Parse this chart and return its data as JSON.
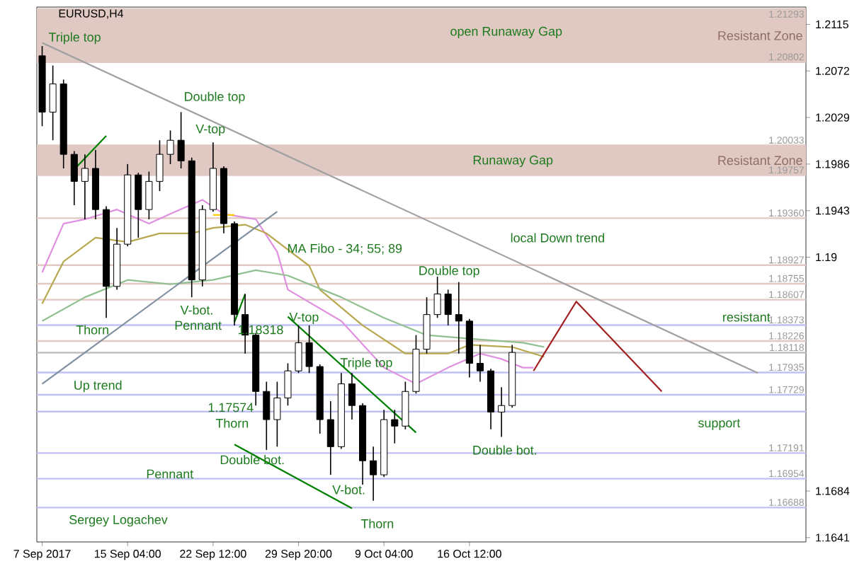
{
  "chart_data": {
    "type": "candlestick",
    "title": "EURUSD,H4",
    "ylim": [
      1.1637,
      1.2131
    ],
    "yticks": [
      1.2115,
      1.2072,
      1.2029,
      1.1986,
      1.1943,
      1.19,
      1.1684,
      1.1641
    ],
    "categories": [
      "7 Sep 2017",
      null,
      null,
      null,
      null,
      null,
      null,
      null,
      "15 Sep 04:00",
      null,
      null,
      null,
      null,
      null,
      null,
      null,
      "22 Sep 12:00",
      null,
      null,
      null,
      null,
      null,
      null,
      null,
      "29 Sep 20:00",
      null,
      null,
      null,
      null,
      null,
      null,
      null,
      "9 Oct 04:00",
      null,
      null,
      null,
      null,
      null,
      null,
      null,
      "16 Oct 12:00",
      null,
      null,
      null,
      null,
      null,
      null,
      null,
      null,
      null,
      null,
      null,
      null,
      null,
      null,
      null,
      null,
      null,
      null,
      null,
      null,
      null,
      null,
      null,
      null,
      null,
      null,
      null,
      null,
      null,
      null,
      null
    ],
    "ohlc": [
      [
        1.2086,
        1.2095,
        1.2021,
        1.2034
      ],
      [
        1.2034,
        1.2077,
        1.2008,
        1.206
      ],
      [
        1.206,
        1.2064,
        1.1982,
        1.1995
      ],
      [
        1.1995,
        1.1998,
        1.1948,
        1.197
      ],
      [
        1.197,
        1.1995,
        1.1935,
        1.1982
      ],
      [
        1.1982,
        1.1999,
        1.1935,
        1.1944
      ],
      [
        1.1944,
        1.1947,
        1.1844,
        1.1873
      ],
      [
        1.1873,
        1.1927,
        1.187,
        1.1912
      ],
      [
        1.1912,
        1.1986,
        1.191,
        1.1976
      ],
      [
        1.1976,
        1.1978,
        1.1918,
        1.1944
      ],
      [
        1.1944,
        1.1979,
        1.1935,
        1.197
      ],
      [
        1.197,
        1.2008,
        1.1961,
        1.1995
      ],
      [
        1.1995,
        1.2017,
        1.1986,
        1.2008
      ],
      [
        1.2008,
        1.2034,
        1.1982,
        1.1989
      ],
      [
        1.1989,
        1.1992,
        1.1863,
        1.1879
      ],
      [
        1.1879,
        1.1948,
        1.1873,
        1.1944
      ],
      [
        1.1944,
        1.2006,
        1.1942,
        1.1982
      ],
      [
        1.1982,
        1.1984,
        1.1922,
        1.1931
      ],
      [
        1.1931,
        1.1933,
        1.1837,
        1.1847
      ],
      [
        1.1847,
        1.1866,
        1.1811,
        1.1828
      ],
      [
        1.1828,
        1.183,
        1.1763,
        1.1776
      ],
      [
        1.1776,
        1.1785,
        1.1722,
        1.175
      ],
      [
        1.175,
        1.1785,
        1.1725,
        1.177
      ],
      [
        1.177,
        1.1802,
        1.1763,
        1.1795
      ],
      [
        1.1795,
        1.1837,
        1.1793,
        1.1821
      ],
      [
        1.1821,
        1.1837,
        1.1793,
        1.1799
      ],
      [
        1.1799,
        1.1801,
        1.1737,
        1.175
      ],
      [
        1.175,
        1.1767,
        1.1699,
        1.1725
      ],
      [
        1.1725,
        1.1793,
        1.1723,
        1.1783
      ],
      [
        1.1783,
        1.1793,
        1.175,
        1.1763
      ],
      [
        1.1763,
        1.1765,
        1.169,
        1.1712
      ],
      [
        1.1712,
        1.1725,
        1.1675,
        1.1699
      ],
      [
        1.1699,
        1.1759,
        1.1697,
        1.175
      ],
      [
        1.175,
        1.1759,
        1.1728,
        1.1744
      ],
      [
        1.1744,
        1.1785,
        1.1741,
        1.1776
      ],
      [
        1.1776,
        1.1828,
        1.1774,
        1.1815
      ],
      [
        1.1815,
        1.1863,
        1.1811,
        1.1847
      ],
      [
        1.1847,
        1.1882,
        1.1844,
        1.1866
      ],
      [
        1.1866,
        1.187,
        1.1837,
        1.1847
      ],
      [
        1.1847,
        1.1877,
        1.1811,
        1.1841
      ],
      [
        1.1841,
        1.1843,
        1.1789,
        1.1802
      ],
      [
        1.1802,
        1.1819,
        1.1785,
        1.1795
      ],
      [
        1.1795,
        1.1797,
        1.1741,
        1.1757
      ],
      [
        1.1757,
        1.178,
        1.1734,
        1.1763
      ],
      [
        1.1763,
        1.1819,
        1.1761,
        1.1812
      ],
      null,
      null,
      null,
      null,
      null,
      null,
      null,
      null,
      null,
      null,
      null,
      null,
      null,
      null,
      null,
      null,
      null,
      null,
      null,
      null,
      null,
      null,
      null,
      null,
      null,
      null,
      null
    ],
    "series": [
      {
        "type": "line",
        "color": "#e090e0",
        "values": [
          1.1886,
          null,
          1.1931,
          null,
          1.1935,
          null,
          1.1941,
          1.1944,
          null,
          null,
          1.1931,
          null,
          1.194,
          null,
          null,
          1.1953,
          null,
          1.194,
          null,
          null,
          1.1935,
          null,
          1.1905,
          1.187,
          null,
          null,
          null,
          null,
          1.1841,
          null,
          null,
          null,
          1.1798,
          null,
          null,
          1.1783,
          null,
          null,
          1.1798,
          null,
          null,
          1.1811,
          null,
          1.1806,
          null,
          1.1798,
          1.1798,
          null,
          null,
          null,
          null,
          null,
          null,
          null,
          null,
          null,
          null,
          null,
          null,
          null,
          null,
          null,
          null,
          null,
          null,
          null,
          null,
          null,
          null,
          null,
          null,
          null
        ]
      },
      {
        "type": "line",
        "color": "#b8a850",
        "values": [
          1.1857,
          null,
          1.1896,
          null,
          null,
          1.1918,
          null,
          null,
          1.1914,
          null,
          null,
          1.1922,
          null,
          null,
          1.1922,
          null,
          1.1927,
          null,
          null,
          1.193,
          null,
          1.1922,
          null,
          null,
          null,
          1.1892,
          1.187,
          null,
          null,
          null,
          1.1837,
          null,
          null,
          null,
          1.1811,
          null,
          null,
          null,
          1.1811,
          null,
          1.1819,
          null,
          null,
          null,
          1.1817,
          null,
          null,
          1.1808,
          null,
          null,
          null,
          null,
          null,
          null,
          null,
          null,
          null,
          null,
          null,
          null,
          null,
          null,
          null,
          null,
          null,
          null,
          null,
          null,
          null,
          null,
          null,
          null
        ]
      },
      {
        "type": "line",
        "color": "#90c090",
        "values": [
          1.1841,
          null,
          null,
          null,
          1.1863,
          null,
          null,
          null,
          1.1879,
          null,
          null,
          null,
          1.1875,
          null,
          null,
          null,
          1.1879,
          null,
          null,
          null,
          1.1888,
          null,
          null,
          1.1883,
          null,
          null,
          null,
          null,
          1.1863,
          null,
          null,
          null,
          1.1844,
          null,
          null,
          null,
          1.1828,
          null,
          null,
          null,
          null,
          1.1824,
          null,
          null,
          null,
          1.1821,
          null,
          1.1817,
          null,
          null,
          null,
          null,
          null,
          null,
          null,
          null,
          null,
          null,
          null,
          null,
          null,
          null,
          null,
          null,
          null,
          null,
          null,
          null,
          null,
          null,
          null,
          null
        ]
      },
      {
        "type": "line",
        "color": "#a0a0a0",
        "values": [
          1.2098,
          null,
          null,
          null,
          null,
          null,
          null,
          null,
          null,
          null,
          null,
          null,
          null,
          null,
          null,
          null,
          null,
          null,
          null,
          null,
          null,
          null,
          null,
          null,
          null,
          null,
          null,
          null,
          null,
          null,
          null,
          null,
          null,
          null,
          null,
          null,
          null,
          null,
          null,
          null,
          null,
          null,
          null,
          null,
          null,
          null,
          null,
          null,
          null,
          null,
          null,
          null,
          null,
          null,
          null,
          null,
          null,
          null,
          null,
          null,
          null,
          null,
          null,
          null,
          null,
          null,
          null,
          1.1793,
          null,
          null,
          null,
          null
        ]
      },
      {
        "type": "line",
        "color": "#8090a0",
        "values": [
          1.1783,
          null,
          null,
          null,
          null,
          null,
          null,
          null,
          null,
          null,
          null,
          null,
          null,
          null,
          null,
          null,
          null,
          null,
          null,
          null,
          null,
          null,
          1.1942,
          null,
          null,
          null,
          null,
          null,
          null,
          null,
          null,
          null,
          null,
          null,
          null,
          null,
          null,
          null,
          null,
          null,
          null,
          null,
          null,
          null,
          null,
          null,
          null,
          null,
          null,
          null,
          null,
          null,
          null,
          null,
          null,
          null,
          null,
          null,
          null,
          null,
          null,
          null,
          null,
          null,
          null,
          null,
          null,
          null,
          null,
          null,
          null,
          null
        ]
      },
      {
        "type": "line",
        "color": "#a02020",
        "values": [
          null,
          null,
          null,
          null,
          null,
          null,
          null,
          null,
          null,
          null,
          null,
          null,
          null,
          null,
          null,
          null,
          null,
          null,
          null,
          null,
          null,
          null,
          null,
          null,
          null,
          null,
          null,
          null,
          null,
          null,
          null,
          null,
          null,
          null,
          null,
          null,
          null,
          null,
          null,
          null,
          null,
          null,
          null,
          null,
          null,
          null,
          1.1795,
          null,
          null,
          null,
          1.1859,
          null,
          null,
          null,
          null,
          null,
          null,
          null,
          1.1776,
          null,
          null,
          null,
          null,
          null,
          null,
          null,
          null,
          null,
          null,
          null,
          null,
          null
        ]
      },
      {
        "type": "line",
        "color": "#008000",
        "values": [
          null,
          null,
          null,
          1.1981,
          null,
          null,
          1.2012,
          null,
          null,
          null,
          null,
          null,
          null,
          null,
          null,
          null,
          null,
          null,
          null,
          null,
          null,
          null,
          null,
          null,
          null,
          null,
          null,
          null,
          null,
          null,
          null,
          null,
          null,
          null,
          null,
          null,
          null,
          null,
          null,
          null,
          null,
          null,
          null,
          null,
          null,
          null,
          null,
          null,
          null,
          null,
          null,
          null,
          null,
          null,
          null,
          null,
          null,
          null,
          null,
          null,
          null,
          null,
          null,
          null,
          null,
          null,
          null,
          null,
          null,
          null,
          null,
          null
        ]
      },
      {
        "type": "line",
        "color": "#008000",
        "values": [
          null,
          null,
          null,
          null,
          null,
          null,
          null,
          null,
          null,
          null,
          null,
          null,
          null,
          null,
          null,
          null,
          null,
          null,
          1.184,
          1.1866,
          null,
          null,
          null,
          null,
          null,
          null,
          null,
          null,
          null,
          null,
          null,
          null,
          null,
          null,
          null,
          null,
          null,
          null,
          null,
          null,
          null,
          null,
          null,
          null,
          null,
          null,
          null,
          null,
          null,
          null,
          null,
          null,
          null,
          null,
          null,
          null,
          null,
          null,
          null,
          null,
          null,
          null,
          null,
          null,
          null,
          null,
          null,
          null,
          null,
          null,
          null,
          null
        ]
      },
      {
        "type": "line",
        "color": "#008000",
        "values": [
          null,
          null,
          null,
          null,
          null,
          null,
          null,
          null,
          null,
          null,
          null,
          null,
          null,
          null,
          null,
          null,
          null,
          null,
          null,
          null,
          null,
          null,
          null,
          1.1845,
          null,
          null,
          null,
          null,
          null,
          null,
          null,
          null,
          null,
          null,
          null,
          1.1738,
          null,
          null,
          null,
          null,
          null,
          null,
          null,
          null,
          null,
          null,
          null,
          null,
          null,
          null,
          null,
          null,
          null,
          null,
          null,
          null,
          null,
          null,
          null,
          null,
          null,
          null,
          null,
          null,
          null,
          null,
          null,
          null,
          null,
          null,
          null,
          null
        ]
      },
      {
        "type": "line",
        "color": "#008000",
        "values": [
          null,
          null,
          null,
          null,
          null,
          null,
          null,
          null,
          null,
          null,
          null,
          null,
          null,
          null,
          null,
          null,
          null,
          null,
          1.1727,
          null,
          null,
          null,
          null,
          null,
          null,
          null,
          null,
          null,
          null,
          1.1668,
          null,
          null,
          null,
          null,
          null,
          null,
          null,
          null,
          null,
          null,
          null,
          null,
          null,
          null,
          null,
          null,
          null,
          null,
          null,
          null,
          null,
          null,
          null,
          null,
          null,
          null,
          null,
          null,
          null,
          null,
          null,
          null,
          null,
          null,
          null,
          null,
          null,
          null,
          null,
          null,
          null,
          null
        ]
      },
      {
        "type": "line",
        "color": "#ffcc00",
        "values": [
          null,
          null,
          null,
          null,
          null,
          null,
          null,
          null,
          null,
          null,
          null,
          null,
          null,
          null,
          null,
          null,
          1.1939,
          null,
          1.1939,
          null,
          null,
          null,
          null,
          null,
          null,
          null,
          null,
          null,
          null,
          null,
          null,
          null,
          null,
          null,
          null,
          null,
          null,
          null,
          null,
          null,
          null,
          null,
          null,
          null,
          null,
          null,
          null,
          null,
          null,
          null,
          null,
          null,
          null,
          null,
          null,
          null,
          null,
          null,
          null,
          null,
          null,
          null,
          null,
          null,
          null,
          null,
          null,
          null,
          null,
          null,
          null,
          null
        ]
      }
    ],
    "bands": [
      {
        "axis": "y",
        "from": 1.20802,
        "to": 1.21293,
        "label": "Resistant Zone",
        "color": "#dfc9c2"
      },
      {
        "axis": "y",
        "from": 1.19757,
        "to": 1.20033,
        "label": "Resistant Zone",
        "color": "#dfc9c2"
      }
    ],
    "ref_lines": [
      {
        "axis": "y",
        "value": 1.21293,
        "label": "1.21293",
        "color": "#dfc9c2"
      },
      {
        "axis": "y",
        "value": 1.20802,
        "label": "1.20802",
        "color": "#dfc9c2"
      },
      {
        "axis": "y",
        "value": 1.20033,
        "label": "1.20033",
        "color": "#dfc9c2"
      },
      {
        "axis": "y",
        "value": 1.19757,
        "label": "1.19757",
        "color": "#dfc9c2"
      },
      {
        "axis": "y",
        "value": 1.1936,
        "label": "1.19360",
        "color": "#dfc9c2"
      },
      {
        "axis": "y",
        "value": 1.18927,
        "label": "1.18927",
        "color": "#dfc9c2"
      },
      {
        "axis": "y",
        "value": 1.18755,
        "label": "1.18755",
        "color": "#dfc9c2"
      },
      {
        "axis": "y",
        "value": 1.18607,
        "label": "1.18607",
        "color": "#dfc9c2"
      },
      {
        "axis": "y",
        "value": 1.18373,
        "label": "1.18373",
        "color": "#c0c0f4"
      },
      {
        "axis": "y",
        "value": 1.18226,
        "label": "1.18226",
        "color": "#dfc9c2"
      },
      {
        "axis": "y",
        "value": 1.18118,
        "label": "1.18118",
        "color": "#c0c0c0"
      },
      {
        "axis": "y",
        "value": 1.17935,
        "label": "1.17935",
        "color": "#c0c0f4"
      },
      {
        "axis": "y",
        "value": 1.17729,
        "label": "1.17729",
        "color": "#c0c0f4"
      },
      {
        "axis": "y",
        "value": 1.17574,
        "color": "#c0c0f4"
      },
      {
        "axis": "y",
        "value": 1.17191,
        "label": "1.17191",
        "color": "#c0c0f4"
      },
      {
        "axis": "y",
        "value": 1.16954,
        "label": "1.16954",
        "color": "#c0c0f4"
      },
      {
        "axis": "y",
        "value": 1.16688,
        "label": "1.16688",
        "color": "#c0c0f4"
      }
    ],
    "annotations": [
      "Triple top",
      "open Runaway Gap",
      "Double top",
      "V-top",
      "Runaway Gap",
      "local Down trend",
      "MA Fibo - 34; 55; 89",
      "Double top",
      "resistant",
      "Thorn",
      "V-bot.",
      {
        "text": "Pennant",
        "y": 1.1837
      },
      "1.18318",
      "V-top",
      "Triple top",
      "Up trend",
      "1.17574",
      "Thorn",
      "support",
      {
        "text": "Double bot.",
        "y": 1.1713
      },
      "Pennant",
      "V-bot.",
      "Double bot.",
      "Thorn",
      "Sergey Logachev"
    ]
  }
}
